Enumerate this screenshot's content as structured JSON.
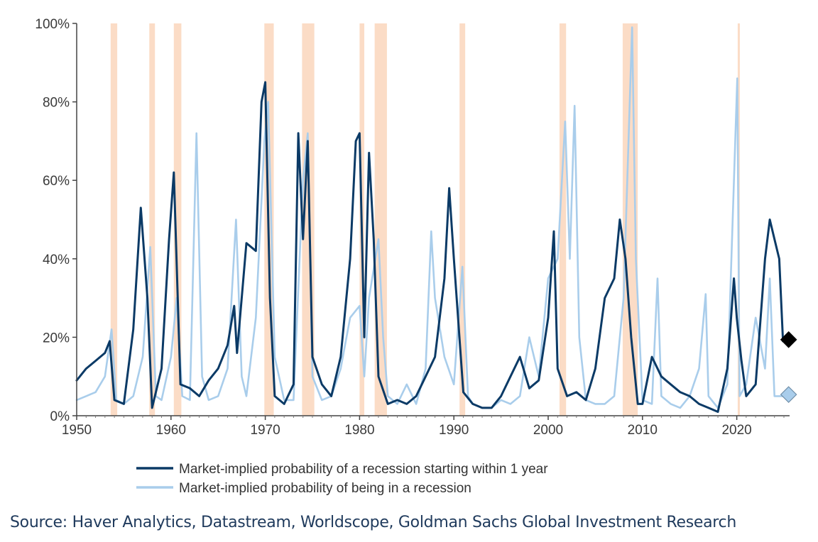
{
  "colors": {
    "recession_shading": "#fbdcc6",
    "series_start": "#0b3a66",
    "series_in": "#a9cdeb",
    "axis": "#444444",
    "text": "#333333",
    "source": "#1f3a5c"
  },
  "chart_data": {
    "type": "line",
    "title": "",
    "xlabel": "",
    "ylabel": "",
    "xlim": [
      1950,
      2026
    ],
    "ylim": [
      0,
      100
    ],
    "x_ticks": [
      1950,
      1960,
      1970,
      1980,
      1990,
      2000,
      2010,
      2020
    ],
    "x_tick_labels": [
      "1950",
      "1960",
      "1970",
      "1980",
      "1990",
      "2000",
      "2010",
      "2020"
    ],
    "y_ticks": [
      0,
      20,
      40,
      60,
      80,
      100
    ],
    "y_tick_labels": [
      "0%",
      "20%",
      "40%",
      "60%",
      "80%",
      "100%"
    ],
    "recessions": [
      [
        1953.6,
        1954.3
      ],
      [
        1957.7,
        1958.3
      ],
      [
        1960.3,
        1961.1
      ],
      [
        1969.9,
        1970.9
      ],
      [
        1973.9,
        1975.2
      ],
      [
        1980.0,
        1980.5
      ],
      [
        1981.6,
        1982.9
      ],
      [
        1990.6,
        1991.2
      ],
      [
        2001.2,
        2001.9
      ],
      [
        2007.9,
        2009.5
      ],
      [
        2020.1,
        2020.3
      ]
    ],
    "series": [
      {
        "name": "Market-implied probability of a recession starting within 1 year",
        "color": "#0b3a66",
        "x": [
          1950,
          1951,
          1952,
          1953,
          1953.5,
          1954,
          1955,
          1956,
          1956.8,
          1957.5,
          1958,
          1959,
          1959.8,
          1960.3,
          1961,
          1962,
          1963,
          1964,
          1965,
          1966,
          1966.7,
          1967,
          1968,
          1969,
          1969.6,
          1970,
          1970.5,
          1971,
          1972,
          1973,
          1973.5,
          1974,
          1974.5,
          1975,
          1976,
          1977,
          1978,
          1979,
          1979.6,
          1980,
          1980.5,
          1981,
          1981.5,
          1982,
          1983,
          1984,
          1985,
          1986,
          1987,
          1988,
          1989,
          1989.5,
          1990,
          1991,
          1992,
          1993,
          1994,
          1995,
          1996,
          1997,
          1998,
          1999,
          2000,
          2000.6,
          2001,
          2002,
          2003,
          2004,
          2005,
          2006,
          2007,
          2007.6,
          2008.2,
          2008.8,
          2009.5,
          2010,
          2011,
          2012,
          2013,
          2014,
          2015,
          2016,
          2017,
          2018,
          2019,
          2019.7,
          2020,
          2020.5,
          2021,
          2022,
          2023,
          2023.5,
          2024,
          2024.5,
          2024.9
        ],
        "values": [
          9,
          12,
          14,
          16,
          19,
          4,
          3,
          22,
          53,
          30,
          2,
          12,
          45,
          62,
          8,
          7,
          5,
          9,
          12,
          18,
          28,
          16,
          44,
          42,
          80,
          85,
          30,
          5,
          3,
          8,
          72,
          45,
          70,
          15,
          8,
          5,
          15,
          40,
          70,
          72,
          20,
          67,
          45,
          10,
          3,
          4,
          3,
          5,
          10,
          15,
          35,
          58,
          40,
          6,
          3,
          2,
          2,
          5,
          10,
          15,
          7,
          9,
          25,
          47,
          12,
          5,
          6,
          4,
          12,
          30,
          35,
          50,
          40,
          20,
          3,
          3,
          15,
          10,
          8,
          6,
          5,
          3,
          2,
          1,
          12,
          35,
          25,
          14,
          5,
          8,
          40,
          50,
          45,
          40,
          19
        ]
      },
      {
        "name": "Market-implied probability of being in a recession",
        "color": "#a9cdeb",
        "x": [
          1950,
          1951,
          1952,
          1953,
          1953.7,
          1954.2,
          1955,
          1956,
          1957,
          1957.8,
          1958.4,
          1959,
          1960,
          1960.6,
          1961.2,
          1962,
          1962.7,
          1963.3,
          1964,
          1965,
          1966,
          1966.9,
          1967.5,
          1968,
          1969,
          1969.9,
          1970.3,
          1971,
          1972,
          1973,
          1974,
          1974.5,
          1975,
          1976,
          1977,
          1978,
          1979,
          1980,
          1980.5,
          1981,
          1982,
          1982.5,
          1983,
          1984,
          1985,
          1986,
          1987,
          1987.6,
          1988,
          1989,
          1990,
          1990.9,
          1991.5,
          1992,
          1993,
          1994,
          1995,
          1996,
          1997,
          1998,
          1999,
          2000,
          2001,
          2001.8,
          2002.3,
          2002.8,
          2003.3,
          2004,
          2005,
          2006,
          2007,
          2008,
          2008.9,
          2009.3,
          2010,
          2011,
          2011.6,
          2012,
          2013,
          2014,
          2015,
          2016,
          2016.7,
          2017,
          2018,
          2019,
          2020.05,
          2020.3,
          2021,
          2022,
          2023,
          2023.5,
          2024,
          2024.9
        ],
        "values": [
          4,
          5,
          6,
          10,
          22,
          4,
          3,
          5,
          15,
          43,
          5,
          4,
          15,
          30,
          5,
          4,
          72,
          10,
          4,
          5,
          12,
          50,
          10,
          5,
          25,
          70,
          80,
          15,
          4,
          4,
          60,
          72,
          10,
          4,
          5,
          12,
          25,
          28,
          10,
          30,
          45,
          20,
          5,
          3,
          8,
          3,
          12,
          47,
          30,
          15,
          8,
          38,
          5,
          3,
          2,
          2,
          4,
          3,
          5,
          20,
          10,
          35,
          40,
          75,
          40,
          79,
          20,
          4,
          3,
          3,
          5,
          30,
          99,
          40,
          4,
          3,
          35,
          5,
          3,
          2,
          5,
          12,
          31,
          5,
          2,
          8,
          86,
          5,
          8,
          25,
          12,
          35,
          5,
          5
        ]
      }
    ],
    "endpoints": [
      {
        "x": 2025.5,
        "value": 19.4,
        "marker": "diamond",
        "color": "#000000",
        "series": "start"
      },
      {
        "x": 2025.5,
        "value": 5.4,
        "marker": "diamond",
        "color": "#a9cdeb",
        "series": "in"
      }
    ],
    "legend": [
      {
        "label": "Market-implied probability of a recession starting within 1 year",
        "color": "#0b3a66"
      },
      {
        "label": "Market-implied probability of being in a recession",
        "color": "#a9cdeb"
      }
    ],
    "legend_position": "bottom-center"
  },
  "source": "Source: Haver Analytics, Datastream, Worldscope, Goldman Sachs Global Investment Research"
}
